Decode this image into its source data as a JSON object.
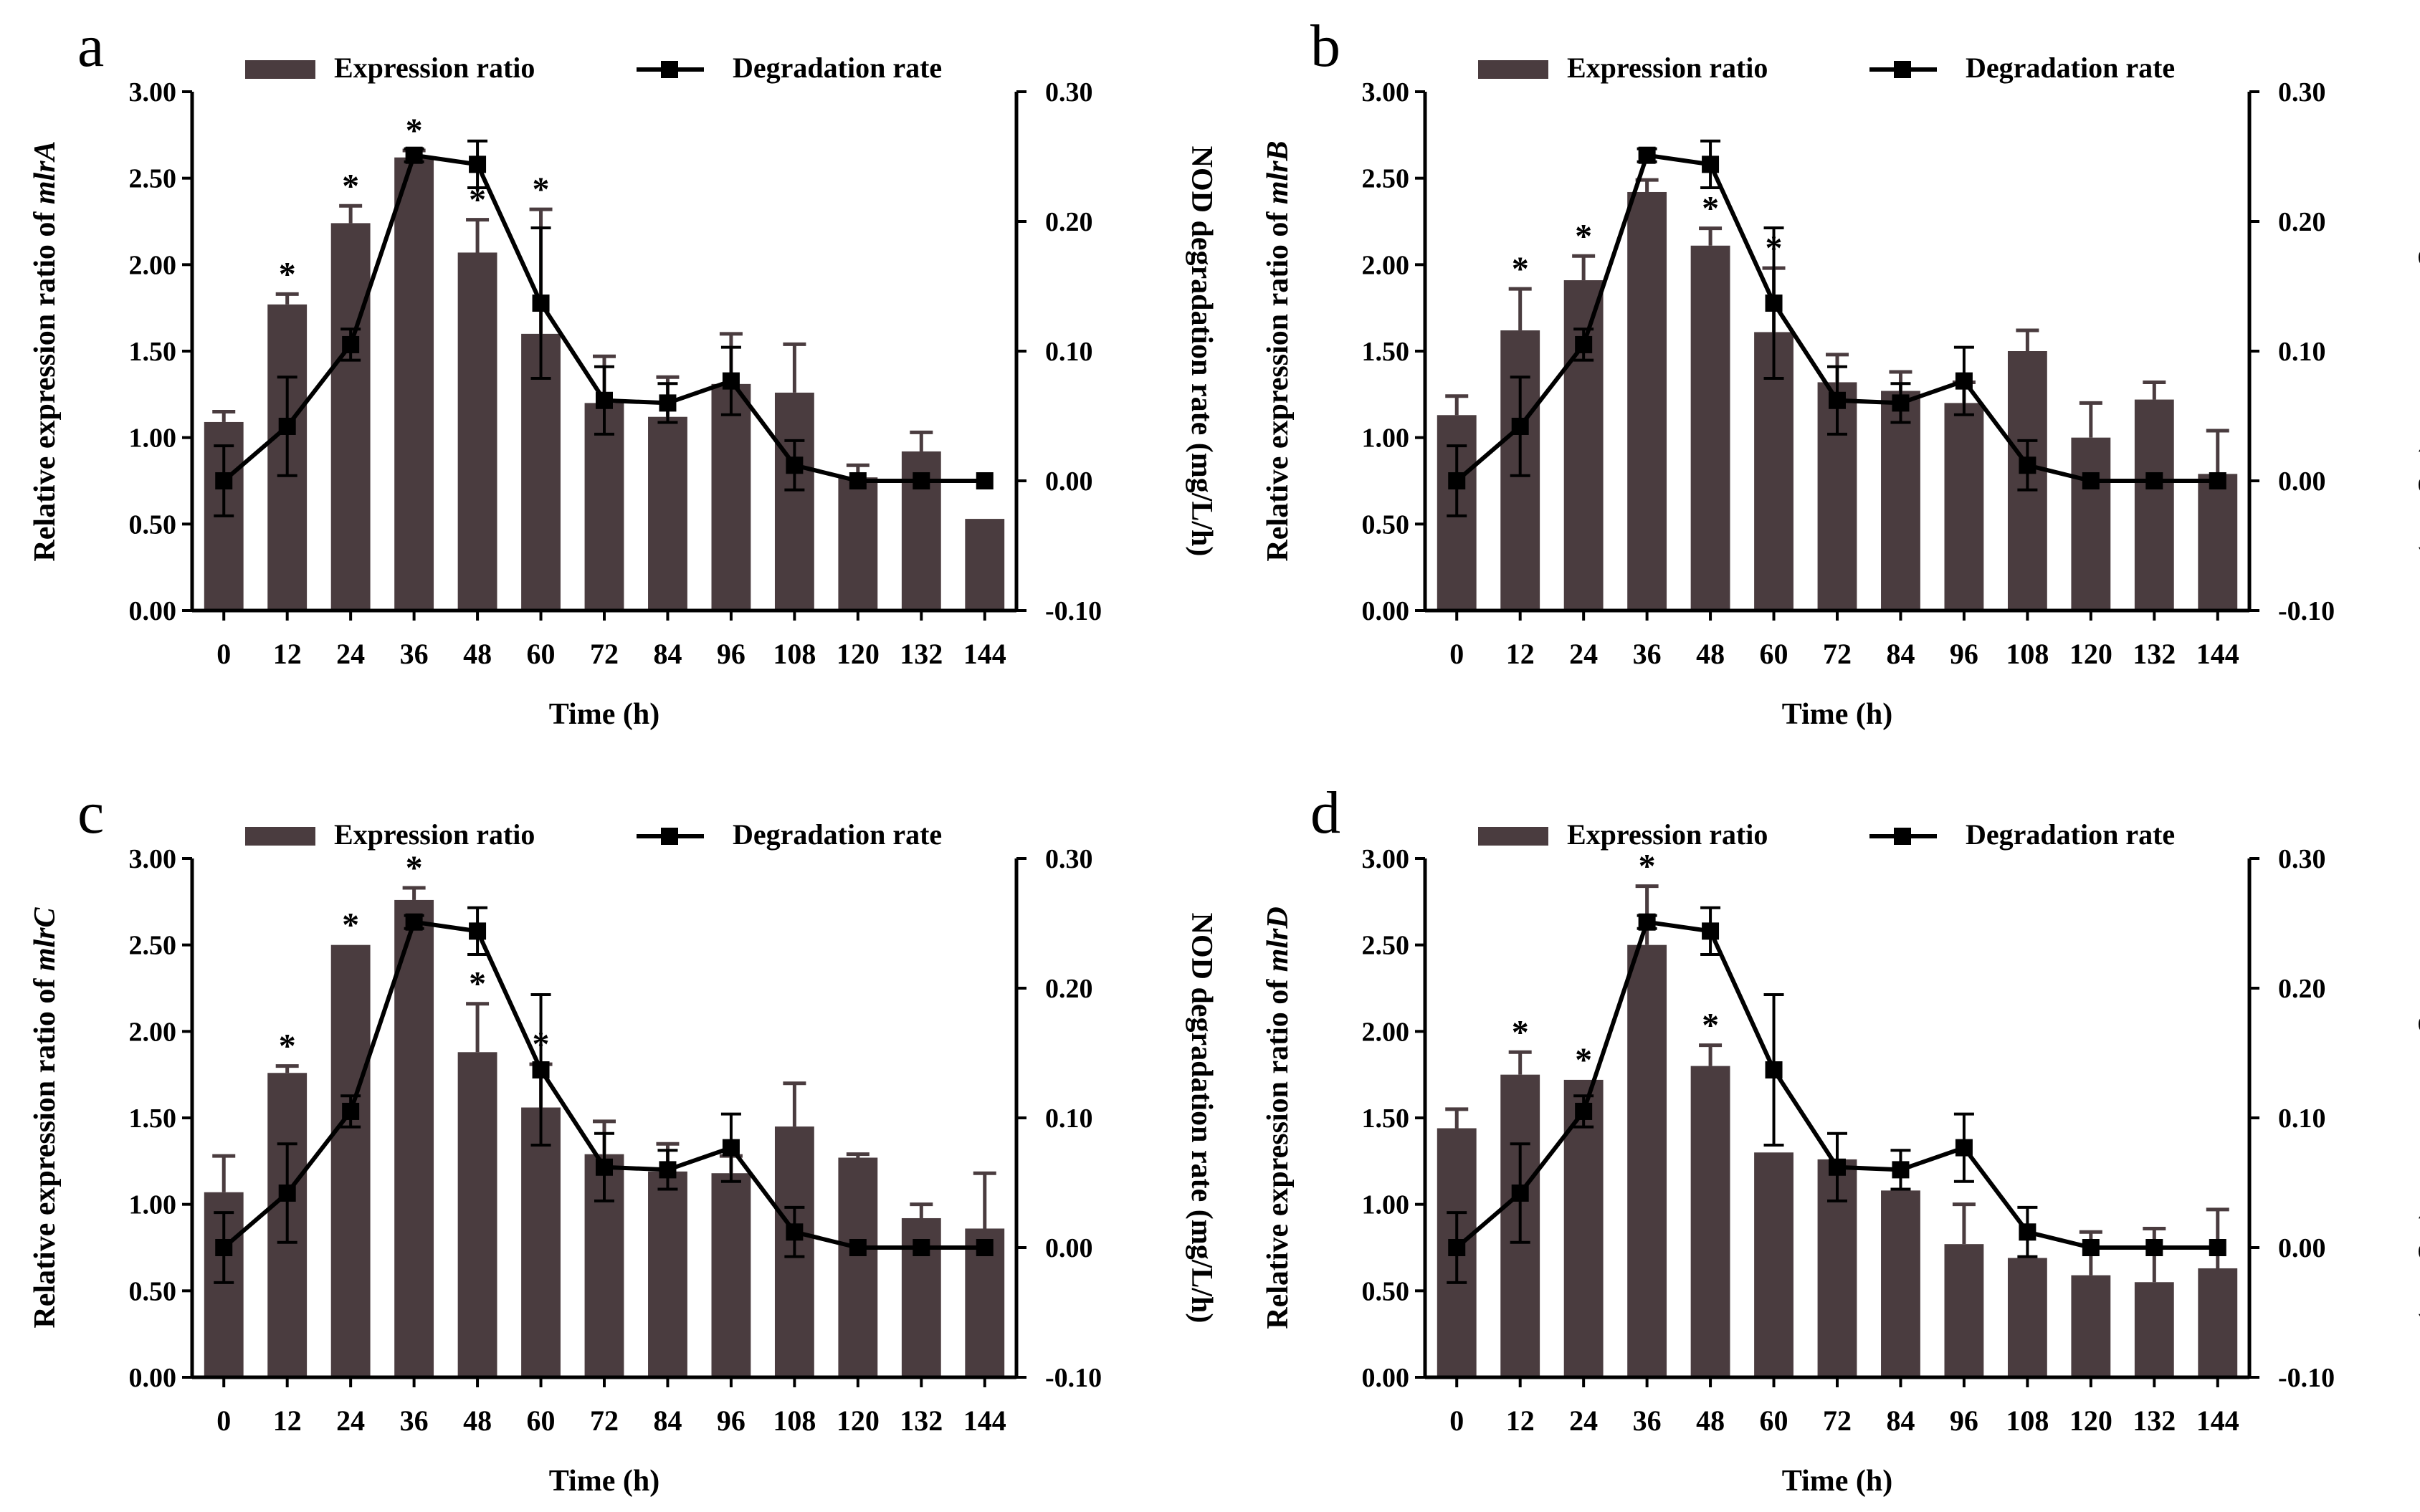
{
  "figure": {
    "legend": {
      "bar_label": "Expression ratio",
      "line_label": "Degradation rate"
    },
    "colors": {
      "bar": "#4a3c3f",
      "line": "#000000",
      "axis": "#000000"
    }
  },
  "chart_data": [
    {
      "panel": "a",
      "type": "bar",
      "gene": "mlrA",
      "ylabel_prefix": "Relative expression ratio of ",
      "y2label": "NOD degradation rate (mg/L/h)",
      "xlabel": "Time (h)",
      "categories": [
        "0",
        "12",
        "24",
        "36",
        "48",
        "60",
        "72",
        "84",
        "96",
        "108",
        "120",
        "132",
        "144"
      ],
      "ylim": [
        0,
        3
      ],
      "y_ticks": [
        "0.00",
        "0.50",
        "1.00",
        "1.50",
        "2.00",
        "2.50",
        "3.00"
      ],
      "y2lim": [
        -0.1,
        0.3
      ],
      "y2_ticks": [
        "-0.10",
        "0.00",
        "0.10",
        "0.20",
        "0.30"
      ],
      "series": [
        {
          "name": "Expression ratio",
          "type": "bar",
          "values": [
            1.09,
            1.77,
            2.24,
            2.62,
            2.07,
            1.6,
            1.2,
            1.12,
            1.31,
            1.26,
            0.77,
            0.92,
            0.53
          ],
          "errors": [
            0.06,
            0.06,
            0.1,
            0.04,
            0.19,
            0.72,
            0.27,
            0.23,
            0.29,
            0.28,
            0.07,
            0.11,
            0.0
          ],
          "significant": [
            false,
            true,
            true,
            true,
            true,
            true,
            false,
            false,
            false,
            false,
            false,
            false,
            false
          ]
        },
        {
          "name": "Degradation rate",
          "type": "line",
          "values": [
            0.0,
            0.042,
            0.105,
            0.251,
            0.244,
            0.137,
            0.062,
            0.06,
            0.077,
            0.012,
            0.0,
            0.0,
            0.0
          ],
          "errors": [
            0.027,
            0.038,
            0.012,
            0.005,
            0.018,
            0.058,
            0.026,
            0.015,
            0.026,
            0.019,
            0.0,
            0.0,
            0.0
          ]
        }
      ]
    },
    {
      "panel": "b",
      "type": "bar",
      "gene": "mlrB",
      "ylabel_prefix": "Relative expression ratio of ",
      "y2label": "NOD degradation rate (mg/L/h)",
      "xlabel": "Time (h)",
      "categories": [
        "0",
        "12",
        "24",
        "36",
        "48",
        "60",
        "72",
        "84",
        "96",
        "108",
        "120",
        "132",
        "144"
      ],
      "ylim": [
        0,
        3
      ],
      "y_ticks": [
        "0.00",
        "0.50",
        "1.00",
        "1.50",
        "2.00",
        "2.50",
        "3.00"
      ],
      "y2lim": [
        -0.1,
        0.3
      ],
      "y2_ticks": [
        "-0.10",
        "0.00",
        "0.10",
        "0.20",
        "0.30"
      ],
      "series": [
        {
          "name": "Expression ratio",
          "type": "bar",
          "values": [
            1.13,
            1.62,
            1.91,
            2.42,
            2.11,
            1.61,
            1.32,
            1.27,
            1.2,
            1.5,
            1.0,
            1.22,
            0.79
          ],
          "errors": [
            0.11,
            0.24,
            0.14,
            0.07,
            0.1,
            0.37,
            0.16,
            0.11,
            0.12,
            0.12,
            0.2,
            0.1,
            0.25
          ],
          "significant": [
            false,
            true,
            true,
            true,
            true,
            true,
            false,
            false,
            false,
            false,
            false,
            false,
            false
          ]
        },
        {
          "name": "Degradation rate",
          "type": "line",
          "values": [
            0.0,
            0.042,
            0.105,
            0.251,
            0.244,
            0.137,
            0.062,
            0.06,
            0.077,
            0.012,
            0.0,
            0.0,
            0.0
          ],
          "errors": [
            0.027,
            0.038,
            0.012,
            0.005,
            0.018,
            0.058,
            0.026,
            0.015,
            0.026,
            0.019,
            0.0,
            0.0,
            0.0
          ]
        }
      ]
    },
    {
      "panel": "c",
      "type": "bar",
      "gene": "mlrC",
      "ylabel_prefix": "Relative expression ratio of ",
      "y2label": "NOD degradation rate (mg/L/h)",
      "xlabel": "Time (h)",
      "categories": [
        "0",
        "12",
        "24",
        "36",
        "48",
        "60",
        "72",
        "84",
        "96",
        "108",
        "120",
        "132",
        "144"
      ],
      "ylim": [
        0,
        3
      ],
      "y_ticks": [
        "0.00",
        "0.50",
        "1.00",
        "1.50",
        "2.00",
        "2.50",
        "3.00"
      ],
      "y2lim": [
        -0.1,
        0.3
      ],
      "y2_ticks": [
        "-0.10",
        "0.00",
        "0.10",
        "0.20",
        "0.30"
      ],
      "series": [
        {
          "name": "Expression ratio",
          "type": "bar",
          "values": [
            1.07,
            1.76,
            2.5,
            2.76,
            1.88,
            1.56,
            1.29,
            1.19,
            1.18,
            1.45,
            1.27,
            0.92,
            0.86
          ],
          "errors": [
            0.21,
            0.04,
            0.0,
            0.07,
            0.28,
            0.25,
            0.19,
            0.16,
            0.1,
            0.25,
            0.02,
            0.08,
            0.32
          ],
          "significant": [
            false,
            true,
            true,
            true,
            true,
            true,
            false,
            false,
            false,
            false,
            false,
            false,
            false
          ]
        },
        {
          "name": "Degradation rate",
          "type": "line",
          "values": [
            0.0,
            0.042,
            0.105,
            0.251,
            0.244,
            0.137,
            0.062,
            0.06,
            0.077,
            0.012,
            0.0,
            0.0,
            0.0
          ],
          "errors": [
            0.027,
            0.038,
            0.012,
            0.005,
            0.018,
            0.058,
            0.026,
            0.015,
            0.026,
            0.019,
            0.0,
            0.0,
            0.0
          ]
        }
      ]
    },
    {
      "panel": "d",
      "type": "bar",
      "gene": "mlrD",
      "ylabel_prefix": "Relative expression ratio of ",
      "y2label": "NOD degradation rate (mg/L/h)",
      "xlabel": "Time (h)",
      "categories": [
        "0",
        "12",
        "24",
        "36",
        "48",
        "60",
        "72",
        "84",
        "96",
        "108",
        "120",
        "132",
        "144"
      ],
      "ylim": [
        0,
        3
      ],
      "y_ticks": [
        "0.00",
        "0.50",
        "1.00",
        "1.50",
        "2.00",
        "2.50",
        "3.00"
      ],
      "y2lim": [
        -0.1,
        0.3
      ],
      "y2_ticks": [
        "-0.10",
        "0.00",
        "0.10",
        "0.20",
        "0.30"
      ],
      "series": [
        {
          "name": "Expression ratio",
          "type": "bar",
          "values": [
            1.44,
            1.75,
            1.72,
            2.5,
            1.8,
            1.3,
            1.26,
            1.08,
            0.77,
            0.69,
            0.59,
            0.55,
            0.63
          ],
          "errors": [
            0.11,
            0.13,
            0.0,
            0.34,
            0.12,
            0.0,
            0.0,
            0.0,
            0.23,
            0.0,
            0.25,
            0.31,
            0.34
          ],
          "significant": [
            false,
            true,
            true,
            true,
            true,
            false,
            false,
            false,
            false,
            false,
            false,
            false,
            false
          ]
        },
        {
          "name": "Degradation rate",
          "type": "line",
          "values": [
            0.0,
            0.042,
            0.105,
            0.251,
            0.244,
            0.137,
            0.062,
            0.06,
            0.077,
            0.012,
            0.0,
            0.0,
            0.0
          ],
          "errors": [
            0.027,
            0.038,
            0.012,
            0.005,
            0.018,
            0.058,
            0.026,
            0.015,
            0.026,
            0.019,
            0.0,
            0.0,
            0.0
          ]
        }
      ]
    }
  ]
}
